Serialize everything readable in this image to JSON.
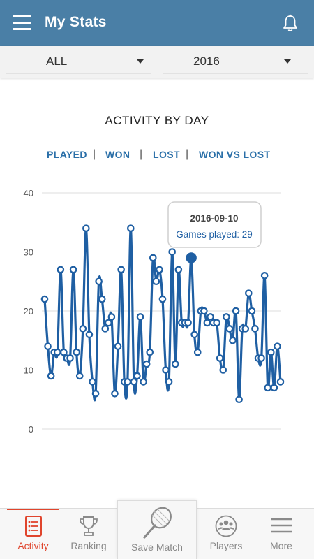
{
  "header": {
    "title": "My Stats",
    "menu_icon": "hamburger-menu-icon",
    "bell_icon": "bell-icon"
  },
  "filters": {
    "scope": "ALL",
    "year": "2016"
  },
  "chart_section": {
    "title": "ACTIVITY BY DAY",
    "tabs": [
      "PLAYED",
      "WON",
      "LOST",
      "WON VS LOST"
    ],
    "separator": "|"
  },
  "tooltip": {
    "date": "2016-09-10",
    "text": "Games played: 29"
  },
  "chart_data": {
    "type": "line",
    "title": "ACTIVITY BY DAY",
    "xlabel": "",
    "ylabel": "",
    "ylim": [
      0,
      40
    ],
    "yticks": [
      0,
      10,
      20,
      30,
      40
    ],
    "grid": true,
    "legend": "none",
    "line_color": "#1f5fa3",
    "series": [
      {
        "values": [
          22,
          14,
          9,
          13,
          13,
          27,
          13,
          12,
          12,
          27,
          13,
          9,
          17,
          34,
          16,
          8,
          6,
          25,
          22,
          17,
          18,
          19,
          6,
          14,
          27,
          8,
          8,
          34,
          8,
          9,
          19,
          8,
          11,
          13,
          29,
          25,
          27,
          22,
          10,
          8,
          30,
          11,
          27,
          18,
          18,
          18,
          29,
          16,
          13,
          20,
          20,
          18,
          19,
          18,
          18,
          12,
          10,
          19,
          17,
          15,
          20,
          5,
          17,
          17,
          23,
          20,
          17,
          12,
          12,
          26,
          7,
          13,
          7,
          14,
          8
        ]
      }
    ],
    "highlight": {
      "index": 46,
      "date": "2016-09-10",
      "value": 29
    }
  },
  "tabbar": {
    "items": [
      {
        "label": "Activity",
        "icon": "activity-list-icon",
        "active": true
      },
      {
        "label": "Ranking",
        "icon": "trophy-icon",
        "active": false
      },
      {
        "label": "Save Match",
        "icon": "tennis-racket-icon",
        "active": false
      },
      {
        "label": "Players",
        "icon": "players-group-icon",
        "active": false
      },
      {
        "label": "More",
        "icon": "more-lines-icon",
        "active": false
      }
    ]
  },
  "colors": {
    "header": "#4a7fa6",
    "accent": "#e0452d",
    "chart_line": "#1f5fa3",
    "tab_text": "#2a6fa8"
  }
}
